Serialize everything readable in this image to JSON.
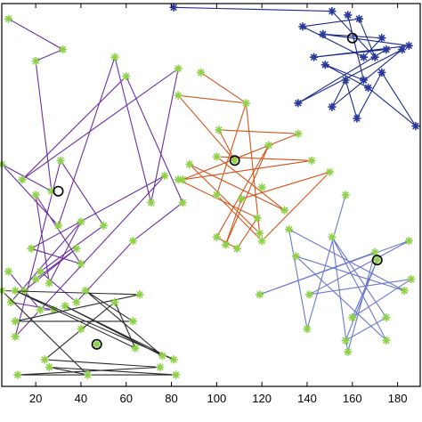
{
  "chart_data": {
    "type": "scatter",
    "title": "",
    "xlabel": "",
    "ylabel": "",
    "xlim": [
      5,
      190
    ],
    "ylim": [
      0,
      100
    ],
    "grid": false,
    "xticks": [
      20,
      40,
      60,
      80,
      100,
      120,
      140,
      160,
      180
    ],
    "xtick_labels": [
      "20",
      "40",
      "60",
      "80",
      "100",
      "120",
      "140",
      "160",
      "180"
    ],
    "axis_color": "#000000",
    "node_color": "#8fd24a",
    "node_star_color": "#5a9a2a",
    "centroid_color": "#000000",
    "series": [
      {
        "color": "#6b2fa0",
        "marker_color": "#8fd24a",
        "centroid": [
          30,
          51
        ],
        "points": [
          [
            8,
            96
          ],
          [
            32,
            88
          ],
          [
            20,
            85
          ],
          [
            55,
            86
          ],
          [
            83,
            83
          ],
          [
            60,
            81
          ],
          [
            5,
            58
          ],
          [
            31,
            59
          ],
          [
            14,
            54
          ],
          [
            77,
            55
          ],
          [
            71,
            48
          ],
          [
            85,
            48
          ],
          [
            27,
            51
          ],
          [
            20,
            50
          ],
          [
            50,
            42
          ],
          [
            30,
            42
          ],
          [
            40,
            43
          ],
          [
            18,
            36
          ],
          [
            63,
            38
          ],
          [
            38,
            36
          ],
          [
            22,
            30
          ],
          [
            8,
            30
          ],
          [
            40,
            32
          ],
          [
            20,
            28
          ],
          [
            15,
            25
          ],
          [
            26,
            27
          ],
          [
            9,
            22
          ],
          [
            38,
            22
          ],
          [
            28,
            20
          ],
          [
            22,
            20
          ],
          [
            11,
            13
          ]
        ],
        "path": [
          [
            8,
            96
          ],
          [
            32,
            88
          ],
          [
            20,
            85
          ],
          [
            27,
            51
          ],
          [
            5,
            58
          ],
          [
            30,
            42
          ],
          [
            55,
            86
          ],
          [
            71,
            48
          ],
          [
            83,
            83
          ],
          [
            14,
            54
          ],
          [
            60,
            81
          ],
          [
            85,
            48
          ],
          [
            63,
            38
          ],
          [
            38,
            22
          ],
          [
            22,
            30
          ],
          [
            50,
            42
          ],
          [
            31,
            59
          ],
          [
            11,
            13
          ],
          [
            77,
            55
          ],
          [
            18,
            36
          ],
          [
            40,
            32
          ],
          [
            20,
            50
          ],
          [
            26,
            27
          ],
          [
            40,
            43
          ],
          [
            9,
            22
          ],
          [
            28,
            20
          ],
          [
            22,
            20
          ],
          [
            8,
            30
          ],
          [
            15,
            25
          ],
          [
            38,
            36
          ],
          [
            20,
            28
          ]
        ]
      },
      {
        "color": "#d2541b",
        "marker_color": "#8fd24a",
        "centroid": [
          108,
          59
        ],
        "points": [
          [
            93,
            82
          ],
          [
            113,
            74
          ],
          [
            83,
            76
          ],
          [
            101,
            67
          ],
          [
            136,
            66
          ],
          [
            123,
            63
          ],
          [
            100,
            60
          ],
          [
            88,
            58
          ],
          [
            142,
            59
          ],
          [
            83,
            54
          ],
          [
            100,
            50
          ],
          [
            120,
            52
          ],
          [
            111,
            49
          ],
          [
            150,
            56
          ],
          [
            108,
            59
          ],
          [
            118,
            44
          ],
          [
            130,
            46
          ],
          [
            119,
            40
          ],
          [
            100,
            39
          ],
          [
            120,
            38
          ],
          [
            104,
            37
          ],
          [
            109,
            36
          ],
          [
            85,
            54
          ]
        ],
        "path": [
          [
            93,
            82
          ],
          [
            113,
            74
          ],
          [
            83,
            76
          ],
          [
            108,
            59
          ],
          [
            101,
            67
          ],
          [
            136,
            66
          ],
          [
            85,
            54
          ],
          [
            142,
            59
          ],
          [
            100,
            60
          ],
          [
            130,
            46
          ],
          [
            88,
            58
          ],
          [
            119,
            40
          ],
          [
            113,
            74
          ],
          [
            100,
            50
          ],
          [
            120,
            38
          ],
          [
            150,
            56
          ],
          [
            111,
            49
          ],
          [
            104,
            37
          ],
          [
            123,
            63
          ],
          [
            100,
            39
          ],
          [
            109,
            36
          ],
          [
            118,
            44
          ],
          [
            83,
            54
          ]
        ]
      },
      {
        "color": "#1a2a8a",
        "marker_color": "#2a3a9a",
        "centroid": [
          160,
          91
        ],
        "points": [
          [
            81,
            99
          ],
          [
            151,
            98
          ],
          [
            158,
            97
          ],
          [
            163,
            96
          ],
          [
            138,
            94
          ],
          [
            147,
            92
          ],
          [
            173,
            91
          ],
          [
            185,
            89
          ],
          [
            165,
            86
          ],
          [
            143,
            86
          ],
          [
            175,
            88
          ],
          [
            182,
            88
          ],
          [
            157,
            80
          ],
          [
            167,
            78
          ],
          [
            173,
            82
          ],
          [
            136,
            74
          ],
          [
            151,
            73
          ],
          [
            165,
            80
          ],
          [
            162,
            70
          ],
          [
            188,
            68
          ],
          [
            148,
            84
          ],
          [
            170,
            86
          ]
        ],
        "path": [
          [
            81,
            99
          ],
          [
            151,
            98
          ],
          [
            170,
            86
          ],
          [
            163,
            96
          ],
          [
            138,
            94
          ],
          [
            165,
            86
          ],
          [
            173,
            91
          ],
          [
            147,
            92
          ],
          [
            185,
            89
          ],
          [
            143,
            86
          ],
          [
            175,
            88
          ],
          [
            136,
            74
          ],
          [
            182,
            88
          ],
          [
            151,
            73
          ],
          [
            157,
            80
          ],
          [
            162,
            70
          ],
          [
            173,
            82
          ],
          [
            188,
            68
          ],
          [
            167,
            78
          ],
          [
            148,
            84
          ],
          [
            165,
            80
          ],
          [
            158,
            97
          ]
        ]
      },
      {
        "color": "#6a78cc",
        "marker_color": "#8fd24a",
        "centroid": [
          171,
          33
        ],
        "points": [
          [
            157,
            50
          ],
          [
            132,
            41
          ],
          [
            151,
            39
          ],
          [
            135,
            34
          ],
          [
            170,
            35
          ],
          [
            185,
            38
          ],
          [
            171,
            33
          ],
          [
            186,
            28
          ],
          [
            119,
            24
          ],
          [
            141,
            24
          ],
          [
            183,
            25
          ],
          [
            160,
            18
          ],
          [
            175,
            18
          ],
          [
            140,
            15
          ],
          [
            157,
            12
          ],
          [
            175,
            12
          ],
          [
            158,
            9
          ]
        ],
        "path": [
          [
            157,
            50
          ],
          [
            140,
            15
          ],
          [
            132,
            41
          ],
          [
            183,
            25
          ],
          [
            135,
            34
          ],
          [
            175,
            12
          ],
          [
            151,
            39
          ],
          [
            158,
            9
          ],
          [
            170,
            35
          ],
          [
            119,
            24
          ],
          [
            185,
            38
          ],
          [
            141,
            24
          ],
          [
            186,
            28
          ],
          [
            160,
            18
          ],
          [
            171,
            33
          ],
          [
            157,
            12
          ],
          [
            175,
            18
          ],
          [
            151,
            39
          ]
        ]
      },
      {
        "color": "#2a2a2a",
        "marker_color": "#8fd24a",
        "centroid": [
          47,
          11
        ],
        "points": [
          [
            5,
            25
          ],
          [
            11,
            25
          ],
          [
            42,
            25
          ],
          [
            66,
            24
          ],
          [
            33,
            21
          ],
          [
            55,
            22
          ],
          [
            63,
            17
          ],
          [
            11,
            17
          ],
          [
            47,
            11
          ],
          [
            76,
            8
          ],
          [
            81,
            7
          ],
          [
            64,
            10
          ],
          [
            24,
            7
          ],
          [
            26,
            5
          ],
          [
            75,
            5
          ],
          [
            82,
            3
          ],
          [
            12,
            3
          ],
          [
            43,
            3
          ],
          [
            40,
            15
          ],
          [
            47,
            11
          ]
        ],
        "path": [
          [
            5,
            25
          ],
          [
            66,
            24
          ],
          [
            11,
            17
          ],
          [
            63,
            17
          ],
          [
            42,
            25
          ],
          [
            76,
            8
          ],
          [
            33,
            21
          ],
          [
            81,
            7
          ],
          [
            11,
            25
          ],
          [
            64,
            10
          ],
          [
            55,
            22
          ],
          [
            24,
            7
          ],
          [
            75,
            5
          ],
          [
            12,
            3
          ],
          [
            82,
            3
          ],
          [
            26,
            5
          ],
          [
            43,
            3
          ],
          [
            5,
            25
          ]
        ]
      }
    ]
  }
}
